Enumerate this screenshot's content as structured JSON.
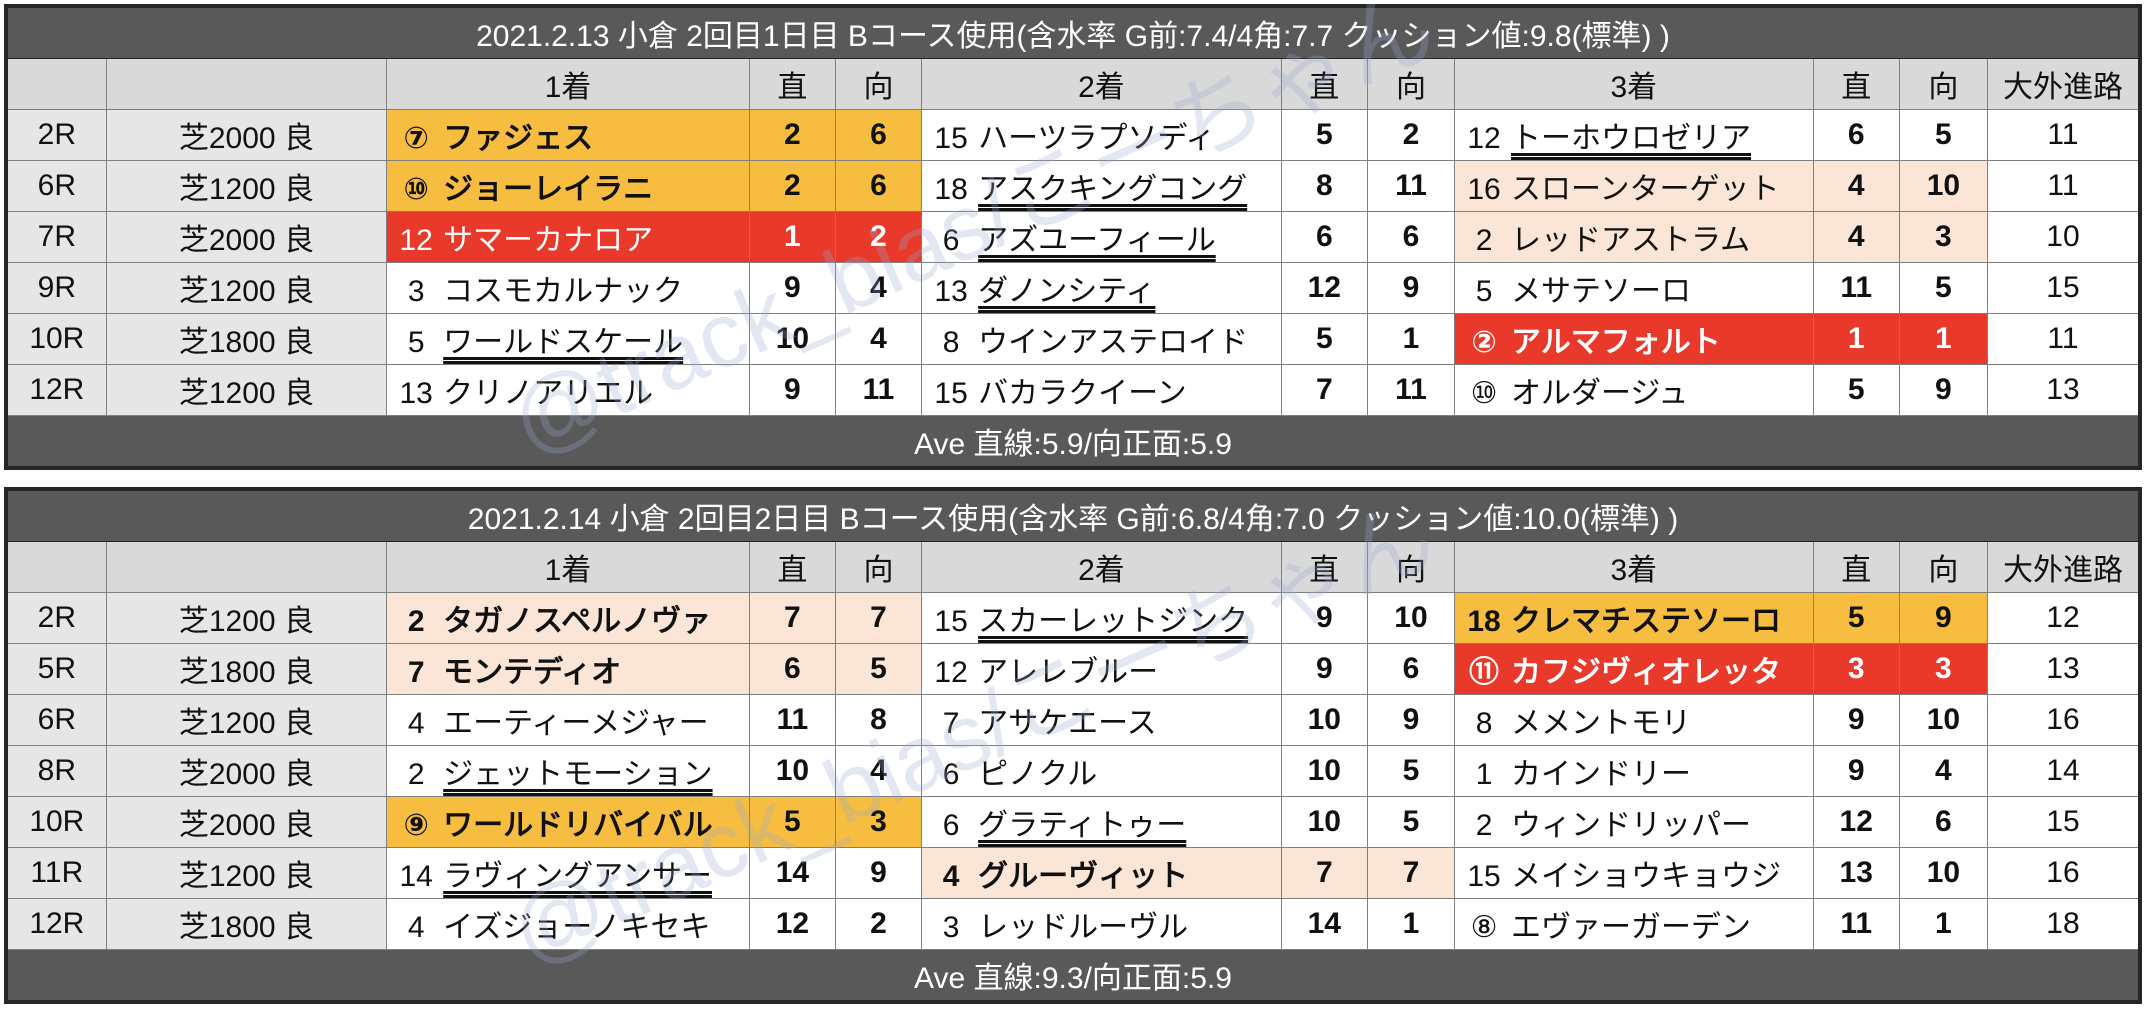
{
  "tables": [
    {
      "title": "2021.2.13 小倉 2回目1日目 Bコース使用(含水率 G前:7.4/4角:7.7 クッション値:9.8(標準) )",
      "header": {
        "first": "1着",
        "second": "2着",
        "third": "3着",
        "straight": "直",
        "turn": "向",
        "outside": "大外進路"
      },
      "rows": [
        {
          "race": "2R",
          "course": "芝2000 良",
          "places": [
            {
              "num": "⑦",
              "name": "ファジェス",
              "straight": 2,
              "turn": 6,
              "highlight": "#f6bd41",
              "bold": true
            },
            {
              "num": "15",
              "name": "ハーツラプソディ",
              "straight": 5,
              "turn": 2
            },
            {
              "num": "12",
              "name": "トーホウロゼリア",
              "straight": 6,
              "turn": 5,
              "underline": true
            }
          ],
          "outside": 11
        },
        {
          "race": "6R",
          "course": "芝1200 良",
          "places": [
            {
              "num": "⑩",
              "name": "ジョーレイラニ",
              "straight": 2,
              "turn": 6,
              "highlight": "#f6bd41",
              "bold": true
            },
            {
              "num": "18",
              "name": "アスクキングコング",
              "straight": 8,
              "turn": 11,
              "underline": true
            },
            {
              "num": "16",
              "name": "スローンターゲット",
              "straight": 4,
              "turn": 10,
              "highlight": "#fbe5d6"
            }
          ],
          "outside": 11
        },
        {
          "race": "7R",
          "course": "芝2000 良",
          "places": [
            {
              "num": "12",
              "name": "サマーカナロア",
              "straight": 1,
              "turn": 2,
              "highlight": "#e8392b"
            },
            {
              "num": "6",
              "name": "アズユーフィール",
              "straight": 6,
              "turn": 6,
              "underline": true
            },
            {
              "num": "2",
              "name": "レッドアストラム",
              "straight": 4,
              "turn": 3,
              "highlight": "#fbe5d6"
            }
          ],
          "outside": 10
        },
        {
          "race": "9R",
          "course": "芝1200 良",
          "places": [
            {
              "num": "3",
              "name": "コスモカルナック",
              "straight": 9,
              "turn": 4
            },
            {
              "num": "13",
              "name": "ダノンシティ",
              "straight": 12,
              "turn": 9,
              "underline": true
            },
            {
              "num": "5",
              "name": "メサテソーロ",
              "straight": 11,
              "turn": 5
            }
          ],
          "outside": 15
        },
        {
          "race": "10R",
          "course": "芝1800 良",
          "places": [
            {
              "num": "5",
              "name": "ワールドスケール",
              "straight": 10,
              "turn": 4,
              "underline": true
            },
            {
              "num": "8",
              "name": "ウインアステロイド",
              "straight": 5,
              "turn": 1
            },
            {
              "num": "②",
              "name": "アルマフォルト",
              "straight": 1,
              "turn": 1,
              "highlight": "#e8392b",
              "bold": true
            }
          ],
          "outside": 11
        },
        {
          "race": "12R",
          "course": "芝1200 良",
          "places": [
            {
              "num": "13",
              "name": "クリノアリエル",
              "straight": 9,
              "turn": 11
            },
            {
              "num": "15",
              "name": "バカラクイーン",
              "straight": 7,
              "turn": 11
            },
            {
              "num": "⑩",
              "name": "オルダージュ",
              "straight": 5,
              "turn": 9
            }
          ],
          "outside": 13
        }
      ],
      "footer": "Ave 直線:5.9/向正面:5.9"
    },
    {
      "title": "2021.2.14 小倉 2回目2日目 Bコース使用(含水率 G前:6.8/4角:7.0 クッション値:10.0(標準) )",
      "header": {
        "first": "1着",
        "second": "2着",
        "third": "3着",
        "straight": "直",
        "turn": "向",
        "outside": "大外進路"
      },
      "rows": [
        {
          "race": "2R",
          "course": "芝1200 良",
          "places": [
            {
              "num": "2",
              "name": "タガノスペルノヴァ",
              "straight": 7,
              "turn": 7,
              "highlight": "#fbe5d6",
              "bold": true
            },
            {
              "num": "15",
              "name": "スカーレットジンク",
              "straight": 9,
              "turn": 10,
              "underline": true
            },
            {
              "num": "18",
              "name": "クレマチステソーロ",
              "straight": 5,
              "turn": 9,
              "highlight": "#f6bd41",
              "bold": true
            }
          ],
          "outside": 12
        },
        {
          "race": "5R",
          "course": "芝1800 良",
          "places": [
            {
              "num": "7",
              "name": "モンテディオ",
              "straight": 6,
              "turn": 5,
              "highlight": "#fbe5d6",
              "bold": true
            },
            {
              "num": "12",
              "name": "アレレブルー",
              "straight": 9,
              "turn": 6
            },
            {
              "num": "⑪",
              "name": "カフジヴィオレッタ",
              "straight": 3,
              "turn": 3,
              "highlight": "#e8392b",
              "bold": true
            }
          ],
          "outside": 13
        },
        {
          "race": "6R",
          "course": "芝1200 良",
          "places": [
            {
              "num": "4",
              "name": "エーティーメジャー",
              "straight": 11,
              "turn": 8
            },
            {
              "num": "7",
              "name": "アサケエース",
              "straight": 10,
              "turn": 9
            },
            {
              "num": "8",
              "name": "メメントモリ",
              "straight": 9,
              "turn": 10
            }
          ],
          "outside": 16
        },
        {
          "race": "8R",
          "course": "芝2000 良",
          "places": [
            {
              "num": "2",
              "name": "ジェットモーション",
              "straight": 10,
              "turn": 4,
              "underline": true
            },
            {
              "num": "6",
              "name": "ピノクル",
              "straight": 10,
              "turn": 5
            },
            {
              "num": "1",
              "name": "カインドリー",
              "straight": 9,
              "turn": 4
            }
          ],
          "outside": 14
        },
        {
          "race": "10R",
          "course": "芝2000 良",
          "places": [
            {
              "num": "⑨",
              "name": "ワールドリバイバル",
              "straight": 5,
              "turn": 3,
              "highlight": "#f6bd41",
              "bold": true
            },
            {
              "num": "6",
              "name": "グラティトゥー",
              "straight": 10,
              "turn": 5,
              "underline": true
            },
            {
              "num": "2",
              "name": "ウィンドリッパー",
              "straight": 12,
              "turn": 6
            }
          ],
          "outside": 15
        },
        {
          "race": "11R",
          "course": "芝1200 良",
          "places": [
            {
              "num": "14",
              "name": "ラヴィングアンサー",
              "straight": 14,
              "turn": 9,
              "underline": true
            },
            {
              "num": "4",
              "name": "グルーヴィット",
              "straight": 7,
              "turn": 7,
              "highlight": "#fbe5d6",
              "bold": true
            },
            {
              "num": "15",
              "name": "メイショウキョウジ",
              "straight": 13,
              "turn": 10
            }
          ],
          "outside": 16
        },
        {
          "race": "12R",
          "course": "芝1800 良",
          "places": [
            {
              "num": "4",
              "name": "イズジョーノキセキ",
              "straight": 12,
              "turn": 2
            },
            {
              "num": "3",
              "name": "レッドルーヴル",
              "straight": 14,
              "turn": 1
            },
            {
              "num": "⑧",
              "name": "エヴァーガーデン",
              "straight": 11,
              "turn": 1
            }
          ],
          "outside": 18
        }
      ],
      "footer": "Ave 直線:9.3/向正面:5.9"
    }
  ],
  "watermark": "@track_bias/こーちゃん"
}
